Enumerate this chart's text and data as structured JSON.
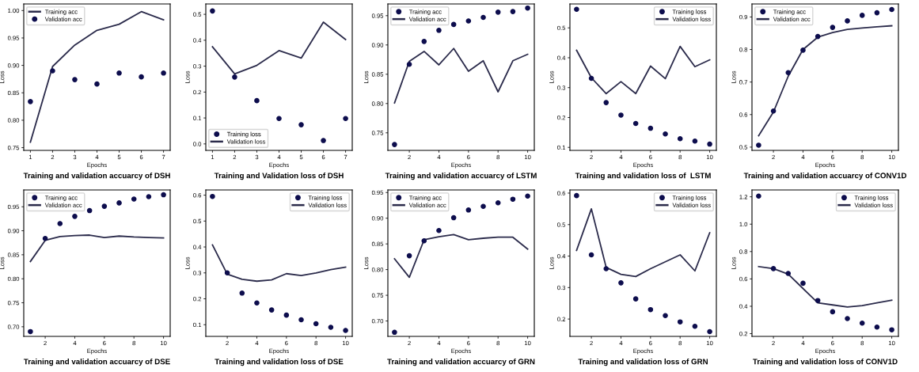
{
  "chart_data": [
    {
      "type": "line",
      "title": "Training and validation accuarcy of DSH",
      "xlabel": "Epochs",
      "ylabel": "Loss",
      "x": [
        1,
        2,
        3,
        4,
        5,
        6,
        7
      ],
      "xlim": [
        0.7,
        7.3
      ],
      "xticks": [
        1,
        2,
        3,
        4,
        5,
        6,
        7
      ],
      "ylim": [
        0.745,
        1.012
      ],
      "yticks": [
        {
          "value": 0.75,
          "label": "0.75"
        },
        {
          "value": 0.8,
          "label": "0.80"
        },
        {
          "value": 0.85,
          "label": "0.85"
        },
        {
          "value": 0.9,
          "label": "0.90"
        },
        {
          "value": 0.95,
          "label": "0.95"
        },
        {
          "value": 1.0,
          "label": "1.00"
        }
      ],
      "legend": "top left",
      "grid": false,
      "series": [
        {
          "name": "Training acc",
          "type": "line",
          "color": "#2b2b4b",
          "values": [
            0.76,
            0.898,
            0.937,
            0.964,
            0.975,
            0.998,
            0.983
          ]
        },
        {
          "name": "Validation acc",
          "type": "scatter",
          "marker": "circle",
          "color": "#0d0d4d",
          "values": [
            0.834,
            0.89,
            0.874,
            0.866,
            0.886,
            0.879,
            0.886
          ]
        }
      ]
    },
    {
      "type": "line",
      "title": "Training and Validation loss of DSH",
      "xlabel": "Epochs",
      "ylabel": "Loss",
      "x": [
        1,
        2,
        3,
        4,
        5,
        6,
        7
      ],
      "xlim": [
        0.7,
        7.3
      ],
      "xticks": [
        1,
        2,
        3,
        4,
        5,
        6,
        7
      ],
      "ylim": [
        -0.025,
        0.54
      ],
      "yticks": [
        {
          "value": 0.0,
          "label": "0.0"
        },
        0.1,
        0.2,
        0.3,
        0.4,
        0.5
      ],
      "legend": "bottom left",
      "grid": false,
      "series": [
        {
          "name": "Training loss",
          "type": "scatter",
          "marker": "circle",
          "color": "#0d0d4d",
          "values": [
            0.513,
            0.258,
            0.167,
            0.098,
            0.074,
            0.013,
            0.098
          ]
        },
        {
          "name": "Validation loss",
          "type": "line",
          "color": "#2b2b4b",
          "values": [
            0.375,
            0.27,
            0.303,
            0.36,
            0.331,
            0.47,
            0.403
          ]
        }
      ]
    },
    {
      "type": "line",
      "title": "Training and validation accuarcy of LSTM",
      "xlabel": "Epochs",
      "ylabel": "Loss",
      "x": [
        1,
        2,
        3,
        4,
        5,
        6,
        7,
        8,
        9,
        10
      ],
      "xlim": [
        0.55,
        10.45
      ],
      "xticks": [
        2,
        4,
        6,
        8,
        10
      ],
      "ylim": [
        0.72,
        0.97
      ],
      "yticks": [
        {
          "value": 0.75,
          "label": "0.75"
        },
        {
          "value": 0.8,
          "label": "0.80"
        },
        {
          "value": 0.85,
          "label": "0.85"
        },
        {
          "value": 0.9,
          "label": "0.90"
        },
        {
          "value": 0.95,
          "label": "0.95"
        }
      ],
      "legend": "top left",
      "grid": false,
      "series": [
        {
          "name": "Training acc",
          "type": "scatter",
          "marker": "circle",
          "color": "#0d0d4d",
          "values": [
            0.73,
            0.867,
            0.906,
            0.925,
            0.935,
            0.941,
            0.947,
            0.956,
            0.957,
            0.963
          ]
        },
        {
          "name": "Validation acc",
          "type": "line",
          "color": "#2b2b4b",
          "values": [
            0.801,
            0.872,
            0.889,
            0.866,
            0.894,
            0.855,
            0.873,
            0.82,
            0.873,
            0.884
          ]
        }
      ]
    },
    {
      "type": "line",
      "title": "Training and validation loss of  LSTM",
      "xlabel": "Epochs",
      "ylabel": "Loss",
      "x": [
        1,
        2,
        3,
        4,
        5,
        6,
        7,
        8,
        9,
        10
      ],
      "xlim": [
        0.55,
        10.45
      ],
      "xticks": [
        2,
        4,
        6,
        8,
        10
      ],
      "ylim": [
        0.09,
        0.58
      ],
      "yticks": [
        0.1,
        0.2,
        0.3,
        0.4,
        0.5
      ],
      "legend": "top right",
      "grid": false,
      "series": [
        {
          "name": "Training loss",
          "type": "scatter",
          "marker": "circle",
          "color": "#0d0d4d",
          "values": [
            0.562,
            0.331,
            0.25,
            0.208,
            0.18,
            0.164,
            0.145,
            0.129,
            0.121,
            0.111
          ]
        },
        {
          "name": "Validation loss",
          "type": "line",
          "color": "#2b2b4b",
          "values": [
            0.425,
            0.333,
            0.28,
            0.32,
            0.28,
            0.372,
            0.33,
            0.438,
            0.37,
            0.393
          ]
        }
      ]
    },
    {
      "type": "line",
      "title": "Training and validation accuarcy of CONV1D",
      "xlabel": "Epochs",
      "ylabel": "Loss",
      "x": [
        1,
        2,
        3,
        4,
        5,
        6,
        7,
        8,
        9,
        10
      ],
      "xlim": [
        0.55,
        10.45
      ],
      "xticks": [
        2,
        4,
        6,
        8,
        10
      ],
      "ylim": [
        0.49,
        0.94
      ],
      "yticks": [
        0.5,
        0.6,
        0.7,
        0.8,
        0.9
      ],
      "legend": "top left",
      "grid": false,
      "series": [
        {
          "name": "Training acc",
          "type": "scatter",
          "marker": "circle",
          "color": "#0d0d4d",
          "values": [
            0.506,
            0.611,
            0.729,
            0.798,
            0.84,
            0.868,
            0.888,
            0.905,
            0.913,
            0.923
          ]
        },
        {
          "name": "Validation acc",
          "type": "line",
          "color": "#2b2b4b",
          "values": [
            0.535,
            0.608,
            0.718,
            0.8,
            0.838,
            0.852,
            0.862,
            0.866,
            0.87,
            0.873
          ]
        }
      ]
    },
    {
      "type": "line",
      "title": "Training and validation accuarcy of DSE",
      "xlabel": "Epochs",
      "ylabel": "Loss",
      "x": [
        1,
        2,
        3,
        4,
        5,
        6,
        7,
        8,
        9,
        10
      ],
      "xlim": [
        0.55,
        10.45
      ],
      "xticks": [
        2,
        4,
        6,
        8,
        10
      ],
      "ylim": [
        0.68,
        0.985
      ],
      "yticks": [
        {
          "value": 0.7,
          "label": "0.70"
        },
        {
          "value": 0.75,
          "label": "0.75"
        },
        {
          "value": 0.8,
          "label": "0.80"
        },
        {
          "value": 0.85,
          "label": "0.85"
        },
        {
          "value": 0.9,
          "label": "0.90"
        },
        {
          "value": 0.95,
          "label": "0.95"
        }
      ],
      "legend": "top left",
      "grid": false,
      "series": [
        {
          "name": "Training acc",
          "type": "scatter",
          "marker": "circle",
          "color": "#0d0d4d",
          "values": [
            0.69,
            0.884,
            0.915,
            0.93,
            0.942,
            0.951,
            0.958,
            0.966,
            0.971,
            0.975
          ]
        },
        {
          "name": "Validation acc",
          "type": "line",
          "color": "#2b2b4b",
          "values": [
            0.836,
            0.88,
            0.888,
            0.89,
            0.891,
            0.886,
            0.889,
            0.887,
            0.886,
            0.885
          ]
        }
      ]
    },
    {
      "type": "line",
      "title": "Training and validation loss of DSE",
      "xlabel": "Epochs",
      "ylabel": "Loss",
      "x": [
        1,
        2,
        3,
        4,
        5,
        6,
        7,
        8,
        9,
        10
      ],
      "xlim": [
        0.55,
        10.45
      ],
      "xticks": [
        2,
        4,
        6,
        8,
        10
      ],
      "ylim": [
        0.055,
        0.62
      ],
      "yticks": [
        0.1,
        0.2,
        0.3,
        0.4,
        0.5,
        0.6
      ],
      "legend": "top right",
      "grid": false,
      "series": [
        {
          "name": "Training loss",
          "type": "scatter",
          "marker": "circle",
          "color": "#0d0d4d",
          "values": [
            0.595,
            0.3,
            0.222,
            0.184,
            0.157,
            0.137,
            0.119,
            0.104,
            0.09,
            0.078
          ]
        },
        {
          "name": "Validation loss",
          "type": "line",
          "color": "#2b2b4b",
          "values": [
            0.408,
            0.295,
            0.275,
            0.268,
            0.273,
            0.297,
            0.29,
            0.3,
            0.313,
            0.322
          ]
        }
      ]
    },
    {
      "type": "line",
      "title": "Training and validation accuarcy of GRN",
      "xlabel": "Epochs",
      "ylabel": "Loss",
      "x": [
        1,
        2,
        3,
        4,
        5,
        6,
        7,
        8,
        9,
        10
      ],
      "xlim": [
        0.55,
        10.45
      ],
      "xticks": [
        2,
        4,
        6,
        8,
        10
      ],
      "ylim": [
        0.67,
        0.955
      ],
      "yticks": [
        {
          "value": 0.7,
          "label": "0.70"
        },
        {
          "value": 0.75,
          "label": "0.75"
        },
        {
          "value": 0.8,
          "label": "0.80"
        },
        {
          "value": 0.85,
          "label": "0.85"
        },
        {
          "value": 0.9,
          "label": "0.90"
        },
        {
          "value": 0.95,
          "label": "0.95"
        }
      ],
      "legend": "top left",
      "grid": false,
      "series": [
        {
          "name": "Training acc",
          "type": "scatter",
          "marker": "circle",
          "color": "#0d0d4d",
          "values": [
            0.678,
            0.827,
            0.856,
            0.876,
            0.901,
            0.916,
            0.923,
            0.93,
            0.937,
            0.943
          ]
        },
        {
          "name": "Validation acc",
          "type": "line",
          "color": "#2b2b4b",
          "values": [
            0.821,
            0.785,
            0.858,
            0.864,
            0.868,
            0.858,
            0.861,
            0.863,
            0.863,
            0.84
          ]
        }
      ]
    },
    {
      "type": "line",
      "title": "Training and validation loss of GRN",
      "xlabel": "Epochs",
      "ylabel": "Loss",
      "x": [
        1,
        2,
        3,
        4,
        5,
        6,
        7,
        8,
        9,
        10
      ],
      "xlim": [
        0.55,
        10.45
      ],
      "xticks": [
        2,
        4,
        6,
        8,
        10
      ],
      "ylim": [
        0.145,
        0.61
      ],
      "yticks": [
        0.2,
        0.3,
        0.4,
        0.5,
        0.6
      ],
      "legend": "top right",
      "grid": false,
      "series": [
        {
          "name": "Training loss",
          "type": "scatter",
          "marker": "circle",
          "color": "#0d0d4d",
          "values": [
            0.592,
            0.404,
            0.36,
            0.315,
            0.264,
            0.23,
            0.211,
            0.191,
            0.177,
            0.16
          ]
        },
        {
          "name": "Validation loss",
          "type": "line",
          "color": "#2b2b4b",
          "values": [
            0.418,
            0.55,
            0.364,
            0.342,
            0.335,
            0.36,
            0.382,
            0.404,
            0.353,
            0.474
          ]
        }
      ]
    },
    {
      "type": "line",
      "title": "Training and validation loss of CONV1D",
      "xlabel": "Epochs",
      "ylabel": "Loss",
      "x": [
        1,
        2,
        3,
        4,
        5,
        6,
        7,
        8,
        9,
        10
      ],
      "xlim": [
        0.55,
        10.45
      ],
      "xticks": [
        2,
        4,
        6,
        8,
        10
      ],
      "ylim": [
        0.18,
        1.25
      ],
      "yticks": [
        0.2,
        0.4,
        0.6,
        0.8,
        {
          "value": 1.0,
          "label": "1.0"
        },
        1.2
      ],
      "legend": "top right",
      "grid": false,
      "series": [
        {
          "name": "Training loss",
          "type": "scatter",
          "marker": "circle",
          "color": "#0d0d4d",
          "values": [
            1.205,
            0.675,
            0.64,
            0.568,
            0.442,
            0.36,
            0.31,
            0.277,
            0.248,
            0.228
          ]
        },
        {
          "name": "Validation loss",
          "type": "line",
          "color": "#2b2b4b",
          "values": [
            0.69,
            0.675,
            0.635,
            0.53,
            0.425,
            0.41,
            0.395,
            0.405,
            0.425,
            0.445
          ]
        }
      ]
    }
  ]
}
